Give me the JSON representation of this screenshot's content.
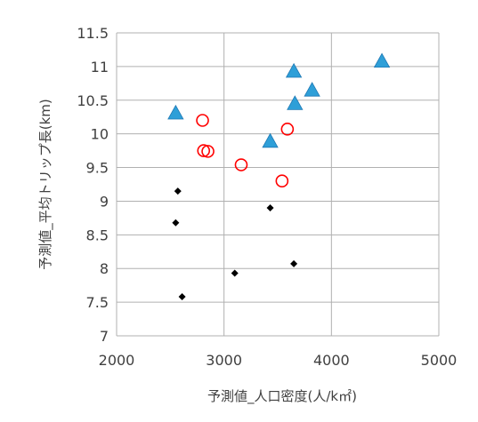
{
  "chart_data": {
    "type": "scatter",
    "title": "",
    "xlabel": "予測値_人口密度(人/k㎡)",
    "ylabel": "予測値_平均トリップ長(km)",
    "xlim": [
      2000,
      5000
    ],
    "ylim": [
      7,
      11.5
    ],
    "x_ticks": [
      2000,
      3000,
      4000,
      5000
    ],
    "y_ticks": [
      7,
      7.5,
      8,
      8.5,
      9,
      9.5,
      10,
      10.5,
      11,
      11.5
    ],
    "x_tick_labels": [
      "2000",
      "3000",
      "4000",
      "5000"
    ],
    "y_tick_labels": [
      "7",
      "7.5",
      "8",
      "8.5",
      "9",
      "9.5",
      "10",
      "10.5",
      "11",
      "11.5"
    ],
    "grid": true,
    "legend": "none",
    "series": [
      {
        "marker": "diamond",
        "color": "#000000",
        "points": [
          {
            "x": 2570,
            "y": 9.15
          },
          {
            "x": 2550,
            "y": 8.68
          },
          {
            "x": 2610,
            "y": 7.58
          },
          {
            "x": 3100,
            "y": 7.93
          },
          {
            "x": 3430,
            "y": 8.9
          },
          {
            "x": 3650,
            "y": 8.07
          }
        ]
      },
      {
        "marker": "circle-open",
        "color": "#ff0000",
        "points": [
          {
            "x": 2800,
            "y": 10.2
          },
          {
            "x": 2810,
            "y": 9.75
          },
          {
            "x": 2850,
            "y": 9.74
          },
          {
            "x": 3160,
            "y": 9.54
          },
          {
            "x": 3540,
            "y": 9.3
          },
          {
            "x": 3590,
            "y": 10.07
          }
        ]
      },
      {
        "marker": "triangle",
        "color": "#2e9fd8",
        "points": [
          {
            "x": 2550,
            "y": 10.31
          },
          {
            "x": 3430,
            "y": 9.89
          },
          {
            "x": 3650,
            "y": 10.93
          },
          {
            "x": 3660,
            "y": 10.45
          },
          {
            "x": 3820,
            "y": 10.65
          },
          {
            "x": 4470,
            "y": 11.08
          }
        ]
      }
    ]
  }
}
